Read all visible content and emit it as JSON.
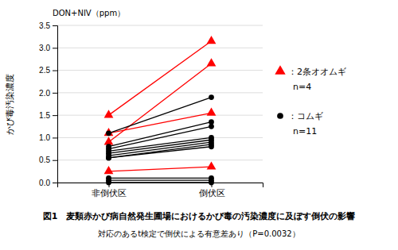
{
  "chart_data": {
    "type": "slope",
    "title": "図1　麦類赤かび病自然発生圃場におけるかび毒の汚染濃度に及ぼす倒伏の影響",
    "subtitle": "対応のあるt検定で倒伏による有意差あり（P=0.0032）",
    "ylabel": "かび毒汚染濃度",
    "ylabel_top": "DON+NIV（ppm）",
    "categories": [
      "非倒伏区",
      "倒伏区"
    ],
    "series": [
      {
        "name": "：2条オオムギ",
        "annotation": "n=4",
        "color": "#ff0000",
        "marker": "triangle",
        "values": [
          [
            1.5,
            3.15
          ],
          [
            0.9,
            2.65
          ],
          [
            0.25,
            0.35
          ],
          [
            1.1,
            1.55
          ]
        ]
      },
      {
        "name": "：コムギ",
        "annotation": "n=11",
        "color": "#000000",
        "marker": "circle",
        "values": [
          [
            1.1,
            1.9
          ],
          [
            0.8,
            1.35
          ],
          [
            0.75,
            1.25
          ],
          [
            0.7,
            1.0
          ],
          [
            0.65,
            0.95
          ],
          [
            0.6,
            0.9
          ],
          [
            0.55,
            0.85
          ],
          [
            0.55,
            0.8
          ],
          [
            0.1,
            0.1
          ],
          [
            0.05,
            0.05
          ],
          [
            0.0,
            0.0
          ]
        ]
      }
    ],
    "ylim": [
      0,
      3.5
    ],
    "yticks": [
      {
        "value": 0,
        "label": "0.0"
      },
      0.5,
      {
        "value": 1.0,
        "label": "1.0"
      },
      1.5,
      {
        "value": 2.0,
        "label": "2.0"
      },
      2.5,
      {
        "value": 3.0,
        "label": "3.0"
      },
      3.5
    ],
    "grid": true
  }
}
